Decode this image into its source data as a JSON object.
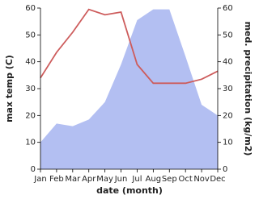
{
  "chart_data": {
    "type": "combo",
    "x_label": "date (month)",
    "y_label": "max temp (C)",
    "y2_label": "med. precipitation (kg/m2)",
    "categories": [
      "Jan",
      "Feb",
      "Mar",
      "Apr",
      "May",
      "Jun",
      "Jul",
      "Aug",
      "Sep",
      "Oct",
      "Nov",
      "Dec"
    ],
    "series": [
      {
        "type": "area",
        "axis": "y2",
        "color": "#b3bff2",
        "values": [
          10,
          17,
          16,
          18.5,
          25,
          39,
          55.5,
          59.5,
          59.5,
          42,
          24,
          20
        ]
      },
      {
        "type": "line",
        "axis": "y",
        "color": "#cd5c5c",
        "values": [
          34,
          43.5,
          51,
          59.5,
          57.5,
          58.5,
          39,
          32,
          32,
          32,
          33.5,
          36.5
        ]
      }
    ],
    "ylim": [
      0,
      60
    ],
    "yticks": [
      0,
      10,
      20,
      30,
      40,
      50,
      60
    ],
    "y2lim": [
      0,
      60
    ],
    "y2ticks": [
      0,
      10,
      20,
      30,
      40,
      50,
      60
    ]
  }
}
